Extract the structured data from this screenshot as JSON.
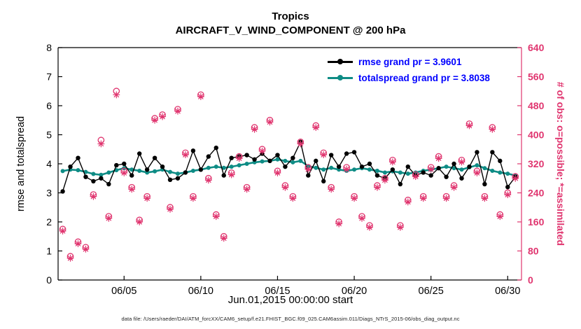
{
  "figure": {
    "title_line1": "Tropics",
    "title_line2": "AIRCRAFT_V_WIND_COMPONENT @ 200 hPa",
    "xlabel": "Jun.01,2015 00:00:00 start",
    "ylabel_left": "rmse and totalspread",
    "ylabel_right": "# of obs: o=possible; *=assimilated",
    "footer": "data file: /Users/raeder/DAI/ATM_forcXX/CAM6_setup/f.e21.FHIST_BGC.f09_025.CAM6assim.011/Diags_NTrS_2015-06/obs_diag_output.nc",
    "colors": {
      "rmse": "#000000",
      "totalspread": "#0e8c85",
      "obs": "#e0356f",
      "legend_text": "#0000ff",
      "axis": "#000000"
    }
  },
  "chart_data": {
    "type": "line",
    "title": "Tropics — AIRCRAFT_V_WIND_COMPONENT @ 200 hPa",
    "xlabel": "Jun.01,2015 00:00:00 start",
    "ylabel_left": "rmse and totalspread",
    "ylabel_right": "# of obs: o=possible; *=assimilated",
    "grid": false,
    "legend_position": "upper-right",
    "x_unit": "day of June 2015, 12-hourly samples",
    "xlim": [
      0.7,
      30.9
    ],
    "left_ylim": [
      0,
      8
    ],
    "left_yticks": [
      0,
      1,
      2,
      3,
      4,
      5,
      6,
      7,
      8
    ],
    "right_ylim": [
      0,
      640
    ],
    "right_yticks": [
      0,
      80,
      160,
      240,
      320,
      400,
      480,
      560,
      640
    ],
    "xticks": [
      {
        "value": 5,
        "label": "06/05"
      },
      {
        "value": 10,
        "label": "06/10"
      },
      {
        "value": 15,
        "label": "06/15"
      },
      {
        "value": 20,
        "label": "06/20"
      },
      {
        "value": 25,
        "label": "06/25"
      },
      {
        "value": 30,
        "label": "06/30"
      }
    ],
    "x": [
      1,
      1.5,
      2,
      2.5,
      3,
      3.5,
      4,
      4.5,
      5,
      5.5,
      6,
      6.5,
      7,
      7.5,
      8,
      8.5,
      9,
      9.5,
      10,
      10.5,
      11,
      11.5,
      12,
      12.5,
      13,
      13.5,
      14,
      14.5,
      15,
      15.5,
      16,
      16.5,
      17,
      17.5,
      18,
      18.5,
      19,
      19.5,
      20,
      20.5,
      21,
      21.5,
      22,
      22.5,
      23,
      23.5,
      24,
      24.5,
      25,
      25.5,
      26,
      26.5,
      27,
      27.5,
      28,
      28.5,
      29,
      29.5,
      30,
      30.5
    ],
    "series": [
      {
        "name": "rmse grand pr = 3.9601",
        "axis": "left",
        "color": "#000000",
        "marker": "dot",
        "values": [
          3.05,
          3.9,
          4.2,
          3.55,
          3.4,
          3.5,
          3.3,
          3.95,
          4.0,
          3.6,
          4.35,
          3.8,
          4.2,
          3.9,
          3.45,
          3.5,
          3.7,
          4.45,
          3.8,
          4.25,
          4.55,
          3.6,
          4.2,
          4.25,
          4.3,
          4.15,
          4.35,
          4.1,
          4.3,
          3.9,
          4.2,
          4.75,
          3.6,
          4.1,
          3.4,
          4.3,
          3.9,
          4.35,
          4.4,
          3.9,
          4.0,
          3.6,
          3.5,
          3.8,
          3.3,
          3.9,
          3.6,
          3.7,
          3.6,
          3.85,
          3.55,
          4.0,
          3.5,
          3.9,
          4.4,
          3.3,
          4.4,
          4.1,
          3.2,
          3.55
        ]
      },
      {
        "name": "totalspread grand pr = 3.8038",
        "axis": "left",
        "color": "#0e8c85",
        "marker": "dot",
        "values": [
          3.75,
          3.8,
          3.78,
          3.72,
          3.65,
          3.62,
          3.7,
          3.78,
          3.85,
          3.8,
          3.76,
          3.7,
          3.74,
          3.8,
          3.72,
          3.66,
          3.7,
          3.76,
          3.8,
          3.86,
          3.9,
          3.86,
          3.9,
          3.95,
          4.0,
          4.05,
          4.08,
          4.1,
          4.15,
          4.1,
          4.05,
          4.1,
          3.92,
          3.86,
          3.8,
          3.86,
          3.8,
          3.76,
          3.8,
          3.85,
          3.8,
          3.76,
          3.7,
          3.74,
          3.7,
          3.66,
          3.7,
          3.76,
          3.8,
          3.85,
          3.9,
          3.85,
          3.8,
          3.88,
          3.95,
          3.85,
          3.76,
          3.7,
          3.66,
          3.6
        ]
      },
      {
        "name": "possible obs (o)",
        "axis": "right",
        "color": "#e0356f",
        "marker": "circle",
        "values": [
          140,
          65,
          105,
          90,
          235,
          385,
          175,
          520,
          300,
          255,
          165,
          230,
          445,
          455,
          200,
          470,
          350,
          230,
          510,
          280,
          180,
          120,
          295,
          340,
          255,
          420,
          360,
          440,
          300,
          260,
          230,
          380,
          310,
          425,
          350,
          255,
          160,
          310,
          230,
          175,
          150,
          260,
          280,
          330,
          150,
          220,
          290,
          230,
          310,
          340,
          230,
          260,
          330,
          430,
          300,
          230,
          420,
          180,
          240,
          285
        ]
      },
      {
        "name": "assimilated obs (*)",
        "axis": "right",
        "color": "#e0356f",
        "marker": "asterisk",
        "values": [
          135,
          60,
          100,
          85,
          230,
          375,
          170,
          510,
          295,
          250,
          160,
          225,
          440,
          450,
          195,
          465,
          345,
          225,
          505,
          275,
          175,
          115,
          290,
          335,
          250,
          415,
          355,
          435,
          295,
          255,
          225,
          375,
          305,
          420,
          345,
          250,
          155,
          305,
          225,
          170,
          145,
          255,
          275,
          325,
          145,
          215,
          285,
          225,
          305,
          335,
          225,
          255,
          325,
          425,
          295,
          225,
          415,
          175,
          235,
          280
        ]
      }
    ]
  }
}
